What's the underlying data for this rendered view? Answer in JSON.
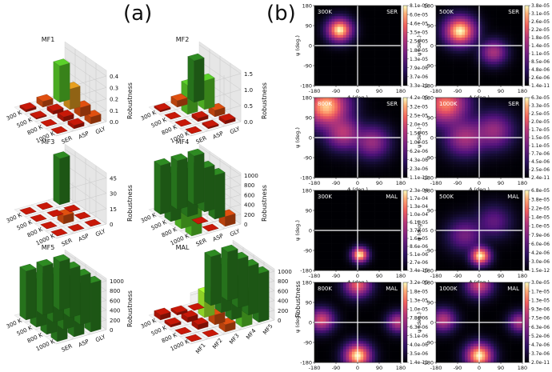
{
  "panel_a_label": "(a)",
  "panel_b_label": "(b)",
  "bar_common": {
    "temps": [
      "300 K",
      "500 K",
      "800 K",
      "1000 K"
    ],
    "ylabel": "Robustness"
  },
  "bar_charts": [
    {
      "title": "MF1",
      "categories": [
        "SER",
        "ASP",
        "GLY"
      ],
      "zticks": [
        "0.0",
        "0.1",
        "0.2",
        "0.3",
        "0.4"
      ],
      "zmax": 0.45,
      "values": [
        [
          0.02,
          0.05,
          0.32
        ],
        [
          0.01,
          0.03,
          0.18
        ],
        [
          0.0,
          0.04,
          0.08
        ],
        [
          0.0,
          0.03,
          0.06
        ]
      ]
    },
    {
      "title": "MF2",
      "categories": [
        "SER",
        "ASP",
        "GLY"
      ],
      "zticks": [
        "0.0",
        "0.5",
        "1.0",
        "1.5"
      ],
      "zmax": 1.6,
      "values": [
        [
          0.05,
          0.2,
          1.3
        ],
        [
          0.0,
          0.9,
          0.9
        ],
        [
          0.0,
          0.1,
          0.2
        ],
        [
          0.0,
          0.05,
          0.1
        ]
      ]
    },
    {
      "title": "MF3",
      "categories": [
        "SER",
        "ASP",
        "GLY"
      ],
      "zticks": [
        "0",
        "15",
        "30",
        "45"
      ],
      "zmax": 50,
      "values": [
        [
          0,
          0,
          45
        ],
        [
          0,
          0,
          0
        ],
        [
          0,
          8,
          0
        ],
        [
          0,
          0,
          0
        ]
      ]
    },
    {
      "title": "MF4",
      "categories": [
        "SER",
        "ASP",
        "GLY"
      ],
      "zticks": [
        "0",
        "200",
        "400",
        "600",
        "800",
        "1000"
      ],
      "zmax": 1050,
      "values": [
        [
          1000,
          1000,
          1000
        ],
        [
          1000,
          1000,
          900
        ],
        [
          600,
          0,
          900
        ],
        [
          600,
          0,
          200
        ]
      ]
    },
    {
      "title": "MF5",
      "categories": [
        "SER",
        "ASP",
        "GLY"
      ],
      "zticks": [
        "0",
        "200",
        "400",
        "600",
        "800",
        "1000"
      ],
      "zmax": 1050,
      "values": [
        [
          1000,
          1000,
          1000
        ],
        [
          1000,
          1000,
          1000
        ],
        [
          1000,
          1000,
          1000
        ],
        [
          1000,
          1000,
          1000
        ]
      ]
    },
    {
      "title": "MAL",
      "categories": [
        "MF1",
        "MF2",
        "MF3",
        "MF4",
        "MF5"
      ],
      "zticks": [
        "0",
        "200",
        "400",
        "600",
        "800",
        "1000"
      ],
      "zmax": 1050,
      "values": [
        [
          100,
          50,
          0,
          1000,
          1000
        ],
        [
          50,
          100,
          500,
          1000,
          1000
        ],
        [
          0,
          100,
          200,
          800,
          1000
        ],
        [
          0,
          0,
          150,
          700,
          1000
        ]
      ]
    }
  ],
  "heatmap_common": {
    "xlabel": "ϕ (deg.)",
    "ylabel": "ψ (deg.)",
    "ticks": [
      "-180",
      "-90",
      "0",
      "90",
      "180"
    ]
  },
  "heatmaps": [
    {
      "temp": "300K",
      "res": "SER",
      "peaks": [
        [
          -75,
          70,
          1,
          28
        ]
      ],
      "cbar": [
        "8.1e-05",
        "6.0e-05",
        "4.6e-05",
        "3.5e-05",
        "2.5e-05",
        "1.8e-05",
        "1.3e-05",
        "7.9e-06",
        "3.7e-06",
        "3.3e-11"
      ]
    },
    {
      "temp": "500K",
      "res": "SER",
      "peaks": [
        [
          -80,
          65,
          1,
          35
        ],
        [
          60,
          -30,
          0.35,
          30
        ]
      ],
      "cbar": [
        "3.8e-05",
        "3.1e-05",
        "2.6e-05",
        "2.2e-05",
        "1.8e-05",
        "1.4e-05",
        "1.1e-05",
        "8.5e-06",
        "4.8e-06",
        "2.6e-06",
        "1.4e-11"
      ]
    },
    {
      "temp": "800K",
      "res": "SER",
      "peaks": [
        [
          -130,
          140,
          0.9,
          50
        ],
        [
          -60,
          20,
          0.4,
          40
        ],
        [
          60,
          -20,
          0.3,
          40
        ]
      ],
      "cbar": [
        "4.2e-05",
        "3.2e-05",
        "2.5e-05",
        "2.0e-05",
        "1.5e-05",
        "1.0e-05",
        "6.2e-06",
        "4.3e-06",
        "2.3e-06",
        "1.1e-11"
      ]
    },
    {
      "temp": "1000K",
      "res": "SER",
      "peaks": [
        [
          -140,
          150,
          0.7,
          50
        ],
        [
          -60,
          0,
          0.35,
          45
        ],
        [
          60,
          30,
          0.3,
          45
        ]
      ],
      "cbar": [
        "6.3e-05",
        "3.3e-05",
        "2.5e-05",
        "2.0e-05",
        "1.7e-05",
        "1.5e-05",
        "1.1e-05",
        "7.7e-06",
        "4.5e-06",
        "2.5e-06",
        "2.4e-11"
      ]
    },
    {
      "temp": "300K",
      "res": "MAL",
      "peaks": [
        [
          10,
          -110,
          1,
          18
        ]
      ],
      "cbar": [
        "2.3e-04",
        "1.7e-04",
        "1.3e-04",
        "1.0e-04",
        "6.1e-05",
        "3.7e-05",
        "1.6e-05",
        "8.6e-06",
        "5.1e-06",
        "2.7e-06",
        "3.4e-15"
      ]
    },
    {
      "temp": "500K",
      "res": "MAL",
      "peaks": [
        [
          5,
          -115,
          1,
          22
        ],
        [
          -60,
          -20,
          0.2,
          40
        ],
        [
          60,
          40,
          0.15,
          40
        ]
      ],
      "cbar": [
        "6.8e-05",
        "3.8e-05",
        "2.2e-05",
        "1.4e-05",
        "1.0e-05",
        "7.9e-06",
        "6.0e-06",
        "4.2e-06",
        "3.0e-06",
        "1.5e-12"
      ]
    },
    {
      "temp": "800K",
      "res": "MAL",
      "peaks": [
        [
          0,
          -150,
          1,
          30
        ],
        [
          -150,
          10,
          0.5,
          28
        ],
        [
          0,
          170,
          0.6,
          30
        ],
        [
          170,
          0,
          0.4,
          25
        ]
      ],
      "cbar": [
        "3.2e-05",
        "1.8e-05",
        "1.3e-05",
        "1.0e-05",
        "7.8e-06",
        "6.3e-06",
        "5.1e-06",
        "4.0e-06",
        "3.5e-06",
        "1.4e-11"
      ]
    },
    {
      "temp": "1000K",
      "res": "MAL",
      "peaks": [
        [
          0,
          -150,
          1,
          30
        ],
        [
          -150,
          10,
          0.4,
          28
        ],
        [
          0,
          170,
          0.5,
          30
        ],
        [
          170,
          0,
          0.35,
          25
        ]
      ],
      "cbar": [
        "3.0e-05",
        "1.7e-05",
        "1.3e-05",
        "9.3e-06",
        "7.5e-06",
        "6.3e-06",
        "5.2e-06",
        "4.7e-06",
        "3.7e-06",
        "2.0e-11"
      ]
    }
  ]
}
